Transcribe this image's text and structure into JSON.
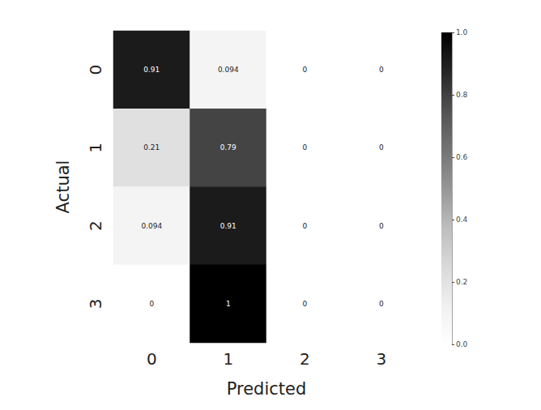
{
  "chart_data": {
    "type": "heatmap",
    "x_label": "Predicted",
    "y_label": "Actual",
    "x_categories": [
      "0",
      "1",
      "2",
      "3"
    ],
    "y_categories": [
      "0",
      "1",
      "2",
      "3"
    ],
    "cells": [
      [
        0.91,
        0.094,
        0,
        0
      ],
      [
        0.21,
        0.79,
        0,
        0
      ],
      [
        0.094,
        0.91,
        0,
        0
      ],
      [
        0,
        1,
        0,
        0
      ]
    ],
    "data_labels": true,
    "colorbar": {
      "range": [
        0,
        1
      ],
      "ticks": [
        {
          "value": 0,
          "label": "0.0"
        },
        {
          "value": 0.2,
          "label": "0.2"
        },
        {
          "value": 0.4,
          "label": "0.4"
        },
        {
          "value": 0.6,
          "label": "0.6"
        },
        {
          "value": 0.8,
          "label": "0.8"
        },
        {
          "value": 1,
          "label": "1.0"
        }
      ]
    }
  }
}
